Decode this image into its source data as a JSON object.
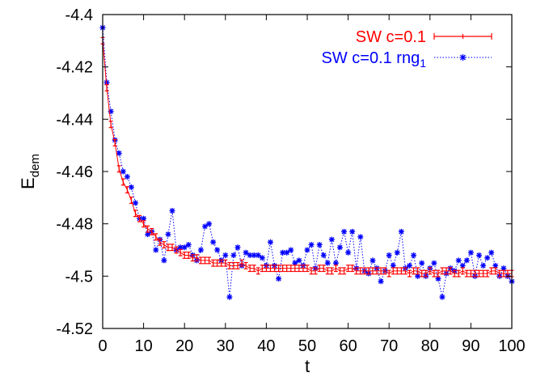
{
  "chart_data": {
    "type": "line",
    "xlabel": "t",
    "ylabel": "E",
    "ylabel_sub": "dem",
    "xlim": [
      0,
      100
    ],
    "ylim": [
      -4.52,
      -4.4
    ],
    "xticks": [
      0,
      10,
      20,
      30,
      40,
      50,
      60,
      70,
      80,
      90,
      100
    ],
    "yticks": [
      -4.52,
      -4.5,
      -4.48,
      -4.46,
      -4.44,
      -4.42,
      -4.4
    ],
    "grid": false,
    "legend_placement": "top-right",
    "series": [
      {
        "name": "SW c=0.1",
        "color": "#ff0000",
        "style": "line with error bars",
        "error": 0.0012,
        "x": [
          0,
          1,
          2,
          3,
          4,
          5,
          6,
          7,
          8,
          9,
          10,
          11,
          12,
          13,
          14,
          15,
          16,
          17,
          18,
          19,
          20,
          21,
          22,
          23,
          24,
          25,
          26,
          27,
          28,
          29,
          30,
          31,
          32,
          33,
          34,
          35,
          36,
          37,
          38,
          39,
          40,
          41,
          42,
          43,
          44,
          45,
          46,
          47,
          48,
          49,
          50,
          51,
          52,
          53,
          54,
          55,
          56,
          57,
          58,
          59,
          60,
          61,
          62,
          63,
          64,
          65,
          66,
          67,
          68,
          69,
          70,
          71,
          72,
          73,
          74,
          75,
          76,
          77,
          78,
          79,
          80,
          81,
          82,
          83,
          84,
          85,
          86,
          87,
          88,
          89,
          90,
          91,
          92,
          93,
          94,
          95,
          96,
          97,
          98,
          99,
          100
        ],
        "y": [
          -4.41,
          -4.428,
          -4.442,
          -4.449,
          -4.459,
          -4.464,
          -4.467,
          -4.471,
          -4.476,
          -4.478,
          -4.48,
          -4.482,
          -4.483,
          -4.485,
          -4.487,
          -4.488,
          -4.489,
          -4.489,
          -4.49,
          -4.491,
          -4.492,
          -4.492,
          -4.493,
          -4.493,
          -4.494,
          -4.494,
          -4.494,
          -4.495,
          -4.495,
          -4.495,
          -4.495,
          -4.496,
          -4.496,
          -4.496,
          -4.495,
          -4.496,
          -4.497,
          -4.497,
          -4.498,
          -4.497,
          -4.497,
          -4.497,
          -4.497,
          -4.497,
          -4.497,
          -4.497,
          -4.497,
          -4.497,
          -4.497,
          -4.497,
          -4.497,
          -4.498,
          -4.498,
          -4.497,
          -4.497,
          -4.498,
          -4.498,
          -4.497,
          -4.498,
          -4.498,
          -4.497,
          -4.497,
          -4.498,
          -4.498,
          -4.498,
          -4.498,
          -4.498,
          -4.498,
          -4.498,
          -4.498,
          -4.499,
          -4.498,
          -4.498,
          -4.498,
          -4.498,
          -4.499,
          -4.498,
          -4.498,
          -4.499,
          -4.499,
          -4.498,
          -4.499,
          -4.499,
          -4.498,
          -4.498,
          -4.498,
          -4.499,
          -4.499,
          -4.498,
          -4.499,
          -4.499,
          -4.499,
          -4.499,
          -4.499,
          -4.499,
          -4.498,
          -4.498,
          -4.499,
          -4.499,
          -4.499,
          -4.499
        ]
      },
      {
        "name": "SW c=0.1 rng",
        "name_sub": "1",
        "color": "#0000ff",
        "style": "dotted line with star markers",
        "x": [
          0,
          1,
          2,
          3,
          4,
          5,
          6,
          7,
          8,
          9,
          10,
          11,
          12,
          13,
          14,
          15,
          16,
          17,
          18,
          19,
          20,
          21,
          22,
          23,
          24,
          25,
          26,
          27,
          28,
          29,
          30,
          31,
          32,
          33,
          34,
          35,
          36,
          37,
          38,
          39,
          40,
          41,
          42,
          43,
          44,
          45,
          46,
          47,
          48,
          49,
          50,
          51,
          52,
          53,
          54,
          55,
          56,
          57,
          58,
          59,
          60,
          61,
          62,
          63,
          64,
          65,
          66,
          67,
          68,
          69,
          70,
          71,
          72,
          73,
          74,
          75,
          76,
          77,
          78,
          79,
          80,
          81,
          82,
          83,
          84,
          85,
          86,
          87,
          88,
          89,
          90,
          91,
          92,
          93,
          94,
          95,
          96,
          97,
          98,
          99,
          100
        ],
        "y": [
          -4.405,
          -4.426,
          -4.437,
          -4.448,
          -4.453,
          -4.46,
          -4.462,
          -4.466,
          -4.472,
          -4.478,
          -4.478,
          -4.484,
          -4.483,
          -4.49,
          -4.486,
          -4.494,
          -4.484,
          -4.475,
          -4.49,
          -4.489,
          -4.489,
          -4.488,
          -4.492,
          -4.494,
          -4.49,
          -4.481,
          -4.48,
          -4.487,
          -4.49,
          -4.494,
          -4.492,
          -4.508,
          -4.492,
          -4.489,
          -4.496,
          -4.491,
          -4.492,
          -4.492,
          -4.492,
          -4.493,
          -4.496,
          -4.487,
          -4.496,
          -4.501,
          -4.491,
          -4.491,
          -4.49,
          -4.495,
          -4.494,
          -4.496,
          -4.49,
          -4.488,
          -4.497,
          -4.488,
          -4.492,
          -4.495,
          -4.486,
          -4.495,
          -4.489,
          -4.483,
          -4.491,
          -4.483,
          -4.497,
          -4.485,
          -4.498,
          -4.499,
          -4.494,
          -4.497,
          -4.502,
          -4.498,
          -4.492,
          -4.496,
          -4.491,
          -4.483,
          -4.497,
          -4.496,
          -4.492,
          -4.5,
          -4.495,
          -4.5,
          -4.497,
          -4.495,
          -4.501,
          -4.508,
          -4.499,
          -4.497,
          -4.498,
          -4.494,
          -4.496,
          -4.494,
          -4.491,
          -4.5,
          -4.492,
          -4.496,
          -4.493,
          -4.491,
          -4.496,
          -4.5,
          -4.497,
          -4.5,
          -4.502
        ]
      }
    ]
  }
}
